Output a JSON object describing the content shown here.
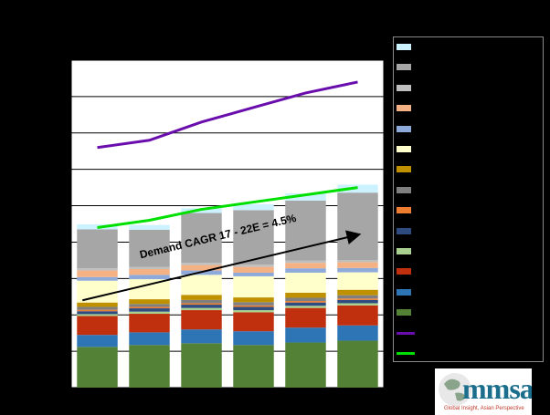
{
  "chart_data": {
    "type": "bar",
    "stacked": true,
    "title": "",
    "xlabel": "",
    "ylabel": "",
    "categories": [
      "",
      "",
      "",
      "",
      "",
      ""
    ],
    "ylim": [
      0,
      9
    ],
    "grid": true,
    "legend_position": "right",
    "series": [
      {
        "color": "#538135",
        "values": [
          1.12,
          1.17,
          1.22,
          1.17,
          1.24,
          1.29
        ]
      },
      {
        "color": "#2e75b6",
        "values": [
          0.33,
          0.35,
          0.38,
          0.38,
          0.41,
          0.42
        ]
      },
      {
        "color": "#c0300f",
        "values": [
          0.52,
          0.51,
          0.53,
          0.52,
          0.54,
          0.55
        ]
      },
      {
        "color": "#a9d08e",
        "values": [
          0.05,
          0.06,
          0.06,
          0.06,
          0.06,
          0.06
        ]
      },
      {
        "color": "#2f4c80",
        "values": [
          0.08,
          0.09,
          0.09,
          0.09,
          0.09,
          0.09
        ]
      },
      {
        "color": "#ed7d31",
        "values": [
          0.04,
          0.04,
          0.04,
          0.04,
          0.04,
          0.04
        ]
      },
      {
        "color": "#7f7f7f",
        "values": [
          0.08,
          0.08,
          0.09,
          0.09,
          0.09,
          0.09
        ]
      },
      {
        "color": "#bf9000",
        "values": [
          0.12,
          0.13,
          0.14,
          0.13,
          0.14,
          0.15
        ]
      },
      {
        "color": "#ffffcc",
        "values": [
          0.6,
          0.55,
          0.55,
          0.58,
          0.55,
          0.48
        ]
      },
      {
        "color": "#8eaadb",
        "values": [
          0.1,
          0.12,
          0.12,
          0.1,
          0.12,
          0.12
        ]
      },
      {
        "color": "#f4b183",
        "values": [
          0.18,
          0.16,
          0.15,
          0.16,
          0.15,
          0.16
        ]
      },
      {
        "color": "#bfbfbf",
        "values": [
          0.06,
          0.06,
          0.06,
          0.06,
          0.06,
          0.06
        ]
      },
      {
        "color": "#a6a6a6",
        "values": [
          1.07,
          1.02,
          1.37,
          1.5,
          1.65,
          1.85
        ]
      },
      {
        "color": "#ccf2ff",
        "values": [
          0.14,
          0.13,
          0.13,
          0.16,
          0.2,
          0.22
        ]
      }
    ],
    "lines": [
      {
        "color": "#6a0dad",
        "values": [
          6.6,
          6.8,
          7.3,
          7.7,
          8.1,
          8.4
        ]
      },
      {
        "color": "#00e000",
        "values": [
          4.4,
          4.6,
          4.9,
          5.1,
          5.3,
          5.5
        ]
      }
    ],
    "annotation": {
      "text": "Demand CAGR 17 - 22E = 4.5%",
      "from": [
        0,
        2.4
      ],
      "to": [
        5,
        4.2
      ]
    }
  },
  "legend": {
    "entries": [
      {
        "color": "#ccf2ff",
        "kind": "bar",
        "label": ""
      },
      {
        "color": "#a6a6a6",
        "kind": "bar",
        "label": ""
      },
      {
        "color": "#bfbfbf",
        "kind": "bar",
        "label": ""
      },
      {
        "color": "#f4b183",
        "kind": "bar",
        "label": ""
      },
      {
        "color": "#8eaadb",
        "kind": "bar",
        "label": ""
      },
      {
        "color": "#ffffcc",
        "kind": "bar",
        "label": ""
      },
      {
        "color": "#bf9000",
        "kind": "bar",
        "label": ""
      },
      {
        "color": "#7f7f7f",
        "kind": "bar",
        "label": ""
      },
      {
        "color": "#ed7d31",
        "kind": "bar",
        "label": ""
      },
      {
        "color": "#2f4c80",
        "kind": "bar",
        "label": ""
      },
      {
        "color": "#a9d08e",
        "kind": "bar",
        "label": ""
      },
      {
        "color": "#c0300f",
        "kind": "bar",
        "label": ""
      },
      {
        "color": "#2e75b6",
        "kind": "bar",
        "label": ""
      },
      {
        "color": "#538135",
        "kind": "bar",
        "label": ""
      },
      {
        "color": "#6a0dad",
        "kind": "line",
        "label": ""
      },
      {
        "color": "#00e000",
        "kind": "line",
        "label": ""
      }
    ]
  },
  "logo": {
    "wordmark": "mmsa",
    "tagline": "Global Insight, Asian Perspective"
  }
}
